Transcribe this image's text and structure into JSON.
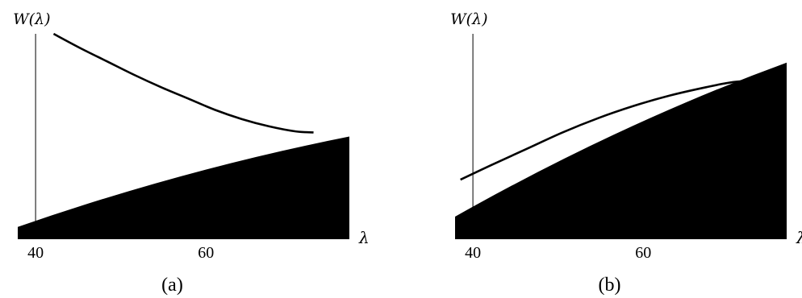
{
  "chart_data": [
    {
      "type": "area",
      "caption": "(a)",
      "ylabel": "W(λ)",
      "xlabel": "λ",
      "xticks": [
        40,
        60
      ],
      "xlim": [
        39,
        76
      ],
      "ylim": [
        0,
        1
      ],
      "region": {
        "x": [
          39,
          76
        ],
        "lower": [
          0.06,
          0.5
        ],
        "curvature": 0.06
      },
      "curve": {
        "x": [
          43.0,
          46.0,
          49.0,
          52.0,
          55.0,
          58.0,
          61.0,
          64.0,
          67.0,
          70.0,
          72.0
        ],
        "y": [
          1.0,
          0.93,
          0.865,
          0.8,
          0.74,
          0.685,
          0.63,
          0.585,
          0.55,
          0.525,
          0.52
        ]
      }
    },
    {
      "type": "area",
      "caption": "(b)",
      "ylabel": "W(λ)",
      "xlabel": "λ",
      "xticks": [
        40,
        60
      ],
      "xlim": [
        39,
        76
      ],
      "ylim": [
        0,
        1
      ],
      "region": {
        "x": [
          39,
          76
        ],
        "lower": [
          0.11,
          0.86
        ],
        "curvature": 0.08
      },
      "curve": {
        "x": [
          39.6,
          43.0,
          47.0,
          51.0,
          55.0,
          59.0,
          63.0,
          67.0,
          70.0,
          73.0
        ],
        "y": [
          0.29,
          0.36,
          0.44,
          0.52,
          0.59,
          0.65,
          0.7,
          0.74,
          0.765,
          0.775
        ]
      }
    }
  ]
}
